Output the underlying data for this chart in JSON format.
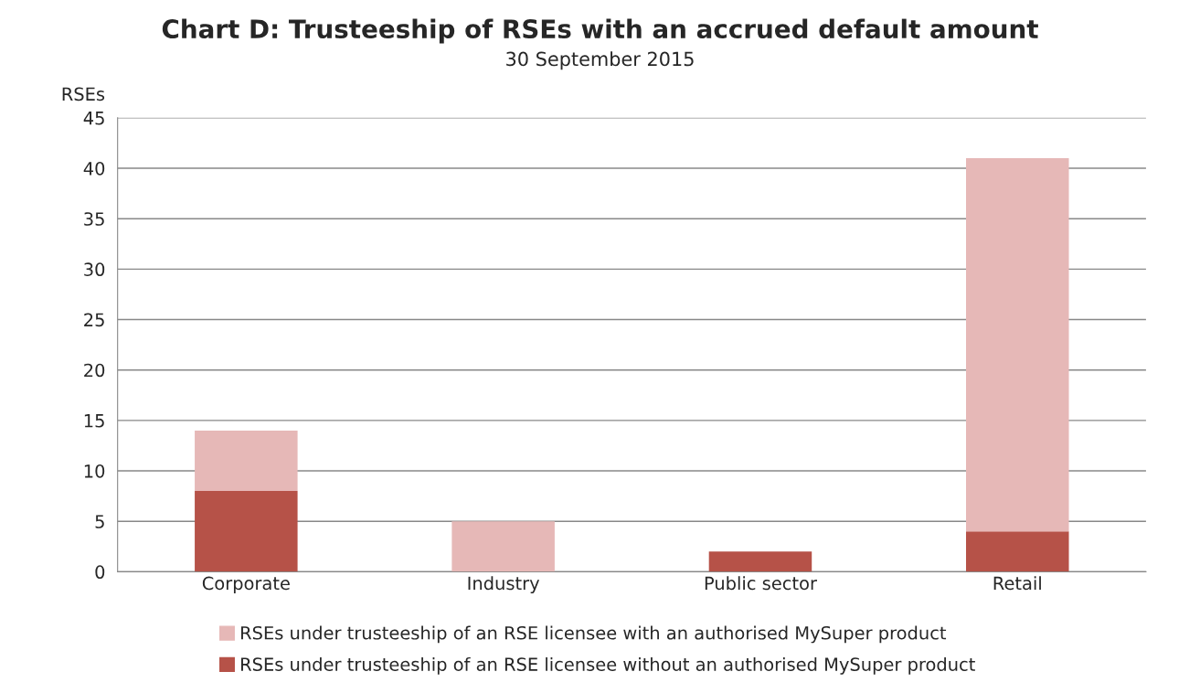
{
  "chart_data": {
    "type": "bar",
    "title": "Chart D: Trusteeship of RSEs with an accrued default amount",
    "subtitle": "30 September 2015",
    "ylabel": "RSEs",
    "categories": [
      "Corporate",
      "Industry",
      "Public sector",
      "Retail"
    ],
    "stacked": true,
    "series": [
      {
        "name": "RSEs under trusteeship of an RSE licensee without an authorised MySuper product",
        "color": "#b65248",
        "values": [
          8,
          null,
          2,
          4
        ]
      },
      {
        "name": "RSEs under trusteeship of an RSE licensee with an authorised MySuper product",
        "color": "#e6b8b7",
        "values": [
          6,
          5,
          null,
          37
        ]
      }
    ],
    "ylim": [
      0,
      45
    ],
    "yticks": [
      0,
      5,
      10,
      15,
      20,
      25,
      30,
      35,
      40,
      45
    ],
    "grid": "y",
    "legend": "bottom"
  }
}
